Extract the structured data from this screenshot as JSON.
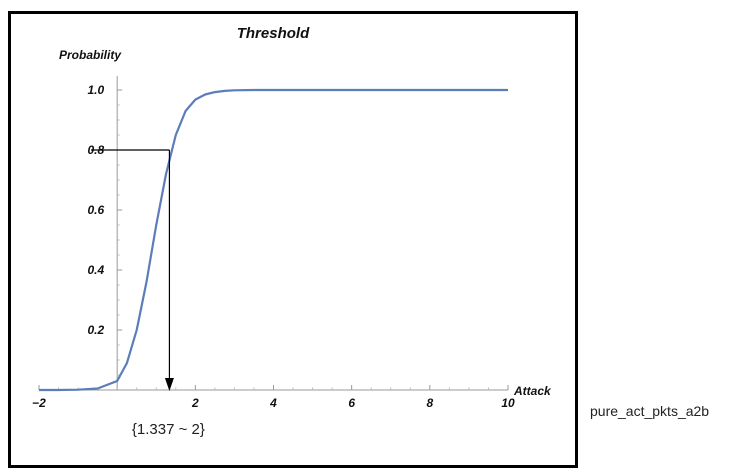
{
  "caption": "pure_act_pkts_a2b",
  "chart_data": {
    "type": "line",
    "title": "Threshold",
    "xlabel": "Attack",
    "ylabel": "Probability",
    "xlim": [
      -2,
      10
    ],
    "ylim": [
      0,
      1.0
    ],
    "xticks": [
      -2,
      2,
      4,
      6,
      8,
      10
    ],
    "xtick_labels": [
      "−2",
      "2",
      "4",
      "6",
      "8",
      "10"
    ],
    "yticks": [
      0.2,
      0.4,
      0.6,
      0.8,
      1.0
    ],
    "ytick_labels": [
      "0.2",
      "0.4",
      "0.6",
      "0.8",
      "1.0"
    ],
    "grid": false,
    "series": [
      {
        "color": "#5b7db8",
        "x": [
          -2.0,
          -1.5,
          -1.0,
          -0.5,
          0.0,
          0.25,
          0.5,
          0.75,
          1.0,
          1.25,
          1.5,
          1.75,
          2.0,
          2.25,
          2.5,
          2.75,
          3.0,
          3.5,
          4.0,
          5.0,
          6.0,
          7.0,
          8.0,
          9.0,
          10.0
        ],
        "y": [
          0.0,
          0.0,
          0.001,
          0.005,
          0.03,
          0.09,
          0.2,
          0.36,
          0.55,
          0.72,
          0.85,
          0.93,
          0.968,
          0.985,
          0.993,
          0.997,
          0.999,
          1.0,
          1.0,
          1.0,
          1.0,
          1.0,
          1.0,
          1.0,
          1.0
        ]
      }
    ],
    "annotation": {
      "x": 1.337,
      "y": 0.8,
      "text": "{1.337 ~ 2}"
    }
  }
}
